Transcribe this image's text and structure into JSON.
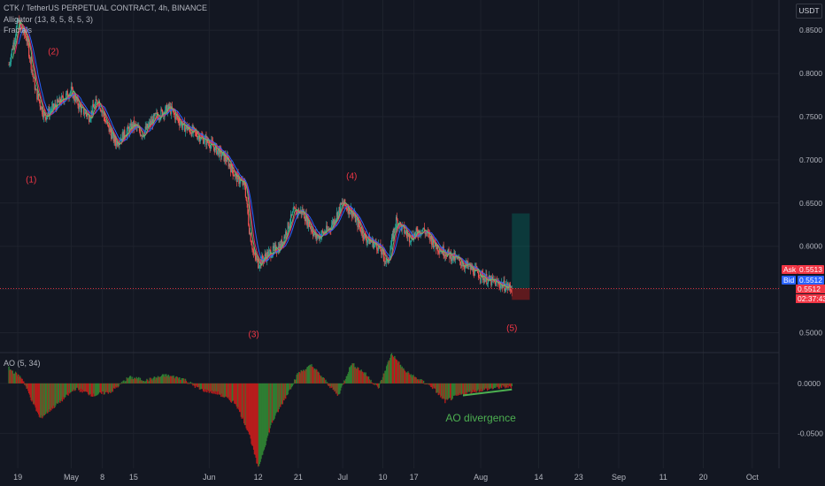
{
  "header": {
    "symbol_line": "CTK / TetherUS PERPETUAL CONTRACT, 4h, BINANCE",
    "indicator_1": "Alligator (13, 8, 5, 8, 5, 3)",
    "indicator_2": "Fractals",
    "currency": "USDT"
  },
  "quote": {
    "ask_label": "Ask",
    "ask_value": "0.5513",
    "bid_label": "Bid",
    "bid_value": "0.5512",
    "last_price": "0.5512",
    "countdown": "02:37:43"
  },
  "oscillator": {
    "label": "AO (5, 34)"
  },
  "colors": {
    "background": "#131722",
    "up": "#26a69a",
    "down": "#ef5350",
    "ao_up": "#2e7d32",
    "ao_down": "#b71c1c",
    "wave_label": "#f23645",
    "jaw": "#2962ff",
    "teeth": "#e91e63",
    "lips": "#66bb6a",
    "divergence": "#4caf50",
    "position_target": "#00796b",
    "position_stop": "#7f1d1d"
  },
  "chart_data": [
    {
      "type": "line",
      "title": "CTK / TetherUS PERPETUAL CONTRACT, 4h, BINANCE",
      "xlabel": "",
      "ylabel": "",
      "x_ticks": [
        "19",
        "May",
        "8",
        "15",
        "Jun",
        "12",
        "21",
        "Jul",
        "10",
        "17",
        "Aug",
        "14",
        "23",
        "Sep",
        "11",
        "20",
        "Oct"
      ],
      "y_ticks": [
        "0.8500",
        "0.8000",
        "0.7500",
        "0.7000",
        "0.6500",
        "0.6000",
        "0.5500",
        "0.5000"
      ],
      "ylim": [
        0.478,
        0.885
      ],
      "x_range": [
        "2023-04-19",
        "2023-10-01"
      ],
      "grid": true,
      "series": [
        {
          "x": [
            "2023-04-17",
            "2023-04-19",
            "2023-04-21",
            "2023-04-23",
            "2023-04-25",
            "2023-04-27",
            "2023-04-29",
            "2023-05-01",
            "2023-05-03",
            "2023-05-05",
            "2023-05-07",
            "2023-05-09",
            "2023-05-11",
            "2023-05-13",
            "2023-05-15",
            "2023-05-17",
            "2023-05-20",
            "2023-05-23",
            "2023-05-26",
            "2023-05-29",
            "2023-06-01",
            "2023-06-03",
            "2023-06-05",
            "2023-06-07",
            "2023-06-09",
            "2023-06-10",
            "2023-06-11",
            "2023-06-12",
            "2023-06-14",
            "2023-06-17",
            "2023-06-20",
            "2023-06-22",
            "2023-06-25",
            "2023-06-28",
            "2023-07-01",
            "2023-07-03",
            "2023-07-06",
            "2023-07-09",
            "2023-07-11",
            "2023-07-13",
            "2023-07-16",
            "2023-07-19",
            "2023-07-22",
            "2023-07-25",
            "2023-07-28",
            "2023-07-31",
            "2023-08-03",
            "2023-08-06",
            "2023-08-08"
          ],
          "values": [
            0.81,
            0.86,
            0.84,
            0.78,
            0.75,
            0.76,
            0.77,
            0.78,
            0.76,
            0.75,
            0.77,
            0.74,
            0.72,
            0.73,
            0.74,
            0.73,
            0.75,
            0.76,
            0.74,
            0.73,
            0.72,
            0.71,
            0.7,
            0.68,
            0.67,
            0.62,
            0.59,
            0.58,
            0.59,
            0.6,
            0.64,
            0.64,
            0.61,
            0.62,
            0.65,
            0.64,
            0.61,
            0.6,
            0.58,
            0.63,
            0.61,
            0.62,
            0.6,
            0.59,
            0.58,
            0.57,
            0.56,
            0.555,
            0.5512
          ]
        }
      ],
      "annotations": [
        "(1)",
        "(2)",
        "(3)",
        "(4)",
        "(5)"
      ]
    },
    {
      "type": "bar",
      "title": "AO (5, 34)",
      "y_ticks": [
        "0.0000",
        "-0.0500"
      ],
      "ylim": [
        -0.085,
        0.03
      ],
      "x": [
        "2023-04-17",
        "2023-04-20",
        "2023-04-24",
        "2023-04-28",
        "2023-05-02",
        "2023-05-06",
        "2023-05-10",
        "2023-05-14",
        "2023-05-18",
        "2023-05-22",
        "2023-05-26",
        "2023-05-30",
        "2023-06-03",
        "2023-06-07",
        "2023-06-10",
        "2023-06-12",
        "2023-06-15",
        "2023-06-18",
        "2023-06-21",
        "2023-06-24",
        "2023-06-27",
        "2023-06-30",
        "2023-07-03",
        "2023-07-06",
        "2023-07-09",
        "2023-07-12",
        "2023-07-15",
        "2023-07-18",
        "2023-07-21",
        "2023-07-24",
        "2023-07-27",
        "2023-07-30",
        "2023-08-02",
        "2023-08-05",
        "2023-08-08"
      ],
      "values": [
        0.015,
        0.005,
        -0.035,
        -0.02,
        -0.005,
        -0.012,
        -0.008,
        0.006,
        0.003,
        0.008,
        0.005,
        -0.006,
        -0.01,
        -0.02,
        -0.05,
        -0.085,
        -0.04,
        -0.015,
        0.01,
        0.018,
        0.003,
        -0.012,
        0.02,
        0.01,
        -0.005,
        0.03,
        0.012,
        0.004,
        -0.003,
        -0.018,
        -0.012,
        -0.008,
        -0.006,
        -0.004,
        -0.003
      ],
      "annotations": [
        "AO divergence"
      ]
    }
  ]
}
